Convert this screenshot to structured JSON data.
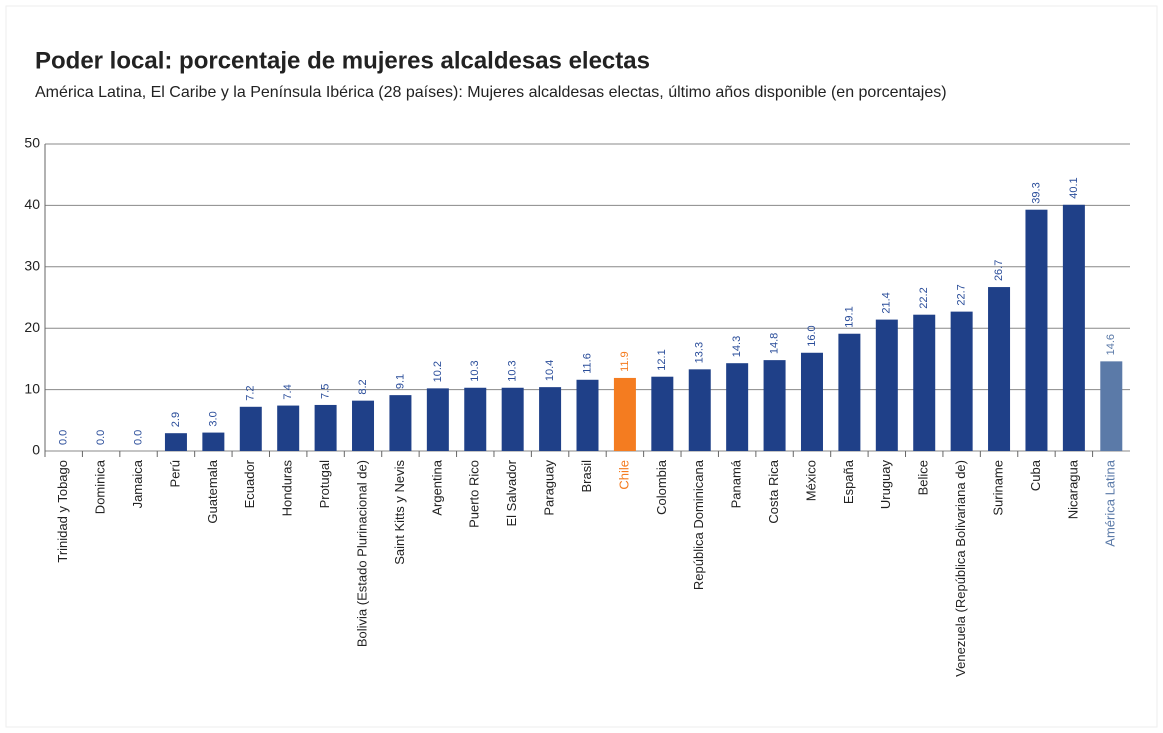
{
  "chart_data": {
    "type": "bar",
    "title": "Poder local: porcentaje de mujeres alcaldesas electas",
    "subtitle": "América Latina, El Caribe y la Península Ibérica (28 países): Mujeres alcaldesas electas, último años disponible (en porcentajes)",
    "categories": [
      "Trinidad y Tobago",
      "Dominica",
      "Jamaica",
      "Perú",
      "Guatemala",
      "Ecuador",
      "Honduras",
      "Protugal",
      "Bolivia (Estado Plurinacional de)",
      "Saint Kitts y Nevis",
      "Argentina",
      "Puerto Rico",
      "El Salvador",
      "Paraguay",
      "Brasil",
      "Chile",
      "Colombia",
      "República Dominicana",
      "Panamá",
      "Costa Rica",
      "México",
      "España",
      "Uruguay",
      "Belice",
      "Venezuela (República Bolivariana de)",
      "Suriname",
      "Cuba",
      "Nicaragua",
      "América Latina"
    ],
    "values": [
      0,
      0,
      0,
      2.9,
      3.0,
      7.2,
      7.4,
      7.5,
      8.2,
      9.1,
      10.2,
      10.3,
      10.3,
      10.4,
      11.6,
      11.9,
      12.1,
      13.3,
      14.3,
      14.8,
      16.0,
      19.1,
      21.4,
      22.2,
      22.7,
      26.7,
      39.3,
      40.1,
      14.6
    ],
    "value_labels": [
      "0.0",
      "0.0",
      "0.0",
      "2.9",
      "3.0",
      "7.2",
      "7.4",
      "7.5",
      "8.2",
      "9.1",
      "10.2",
      "10.3",
      "10.3",
      "10.4",
      "11.6",
      "11.9",
      "12.1",
      "13.3",
      "14.3",
      "14.8",
      "16.0",
      "19.1",
      "21.4",
      "22.2",
      "22.7",
      "26.7",
      "39.3",
      "40.1",
      "14.6"
    ],
    "color": "#1f4088",
    "colors": [
      "#1f4088",
      "#1f4088",
      "#1f4088",
      "#1f4088",
      "#1f4088",
      "#1f4088",
      "#1f4088",
      "#1f4088",
      "#1f4088",
      "#1f4088",
      "#1f4088",
      "#1f4088",
      "#1f4088",
      "#1f4088",
      "#1f4088",
      "#f47c20",
      "#1f4088",
      "#1f4088",
      "#1f4088",
      "#1f4088",
      "#1f4088",
      "#1f4088",
      "#1f4088",
      "#1f4088",
      "#1f4088",
      "#1f4088",
      "#1f4088",
      "#1f4088",
      "#5b7aa8"
    ],
    "ylim": [
      0,
      50
    ],
    "yticks": [
      0,
      10,
      20,
      30,
      40,
      50
    ],
    "grid": true
  }
}
